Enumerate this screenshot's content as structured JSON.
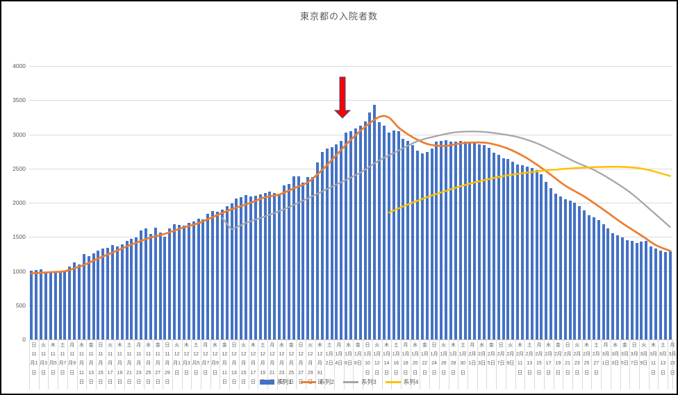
{
  "title": "東京都の入院者数",
  "colors": {
    "bar": "#4472C4",
    "line2": "#ED7D31",
    "line3": "#A5A5A5",
    "line4": "#FFC000",
    "gridline": "#D9D9D9",
    "axis_line": "#BFBFBF",
    "text": "#595959",
    "arrow_fill": "#FF0000",
    "arrow_border": "#2F5597"
  },
  "y_axis": {
    "min": 0,
    "max": 4000,
    "step": 500,
    "ticks": [
      "0",
      "500",
      "1000",
      "1500",
      "2000",
      "2500",
      "3000",
      "3500",
      "4000"
    ]
  },
  "legend": [
    {
      "label": "系列1",
      "type": "bar",
      "color": "#4472C4"
    },
    {
      "label": "系列2",
      "type": "line",
      "color": "#ED7D31"
    },
    {
      "label": "系列3",
      "type": "line",
      "color": "#A5A5A5"
    },
    {
      "label": "系列4",
      "type": "line",
      "color": "#FFC000"
    }
  ],
  "annotation": {
    "shape": "down-arrow",
    "fill_color": "#FF0000",
    "border_color": "#2F5597"
  },
  "chart_data": {
    "type": "bar",
    "combo": "bar+line",
    "ylim": [
      0,
      4000
    ],
    "grid": true,
    "legend_position": "bottom",
    "x_start": "11月1日",
    "x_end": "3月15日",
    "x_label_interval_days": 2,
    "x_labels": [
      [
        "日",
        11,
        1
      ],
      [
        "火",
        11,
        3
      ],
      [
        "木",
        11,
        5
      ],
      [
        "土",
        11,
        7
      ],
      [
        "月",
        11,
        9
      ],
      [
        "水",
        11,
        11
      ],
      [
        "金",
        11,
        13
      ],
      [
        "日",
        11,
        15
      ],
      [
        "火",
        11,
        17
      ],
      [
        "木",
        11,
        19
      ],
      [
        "土",
        11,
        21
      ],
      [
        "月",
        11,
        23
      ],
      [
        "水",
        11,
        25
      ],
      [
        "金",
        11,
        27
      ],
      [
        "日",
        11,
        29
      ],
      [
        "火",
        12,
        1
      ],
      [
        "木",
        12,
        3
      ],
      [
        "土",
        12,
        5
      ],
      [
        "月",
        12,
        7
      ],
      [
        "水",
        12,
        9
      ],
      [
        "金",
        12,
        11
      ],
      [
        "日",
        12,
        13
      ],
      [
        "火",
        12,
        15
      ],
      [
        "木",
        12,
        17
      ],
      [
        "土",
        12,
        19
      ],
      [
        "月",
        12,
        21
      ],
      [
        "水",
        12,
        23
      ],
      [
        "金",
        12,
        25
      ],
      [
        "日",
        12,
        27
      ],
      [
        "火",
        12,
        29
      ],
      [
        "木",
        12,
        31
      ],
      [
        "土",
        1,
        2
      ],
      [
        "月",
        1,
        4
      ],
      [
        "水",
        1,
        6
      ],
      [
        "金",
        1,
        8
      ],
      [
        "日",
        1,
        10
      ],
      [
        "火",
        1,
        12
      ],
      [
        "木",
        1,
        14
      ],
      [
        "土",
        1,
        16
      ],
      [
        "月",
        1,
        18
      ],
      [
        "水",
        1,
        20
      ],
      [
        "金",
        1,
        22
      ],
      [
        "日",
        1,
        24
      ],
      [
        "火",
        1,
        26
      ],
      [
        "木",
        1,
        28
      ],
      [
        "土",
        1,
        30
      ],
      [
        "月",
        2,
        1
      ],
      [
        "水",
        2,
        3
      ],
      [
        "金",
        2,
        5
      ],
      [
        "日",
        2,
        7
      ],
      [
        "火",
        2,
        9
      ],
      [
        "木",
        2,
        11
      ],
      [
        "土",
        2,
        13
      ],
      [
        "月",
        2,
        15
      ],
      [
        "水",
        2,
        17
      ],
      [
        "金",
        2,
        19
      ],
      [
        "日",
        2,
        21
      ],
      [
        "火",
        2,
        23
      ],
      [
        "木",
        2,
        25
      ],
      [
        "土",
        2,
        27
      ],
      [
        "月",
        3,
        1
      ],
      [
        "水",
        3,
        3
      ],
      [
        "金",
        3,
        5
      ],
      [
        "日",
        3,
        7
      ],
      [
        "火",
        3,
        9
      ],
      [
        "木",
        3,
        11
      ],
      [
        "土",
        3,
        13
      ],
      [
        "月",
        3,
        15
      ]
    ],
    "series": [
      {
        "name": "系列1",
        "type": "bar",
        "color": "#4472C4",
        "values": [
          1010,
          1020,
          1025,
          985,
          975,
          980,
          990,
          1000,
          1070,
          1125,
          1095,
          1245,
          1215,
          1260,
          1295,
          1330,
          1345,
          1380,
          1365,
          1395,
          1440,
          1470,
          1490,
          1590,
          1620,
          1545,
          1630,
          1560,
          1500,
          1620,
          1690,
          1680,
          1665,
          1710,
          1725,
          1770,
          1755,
          1840,
          1880,
          1870,
          1900,
          1950,
          1990,
          2060,
          2080,
          2110,
          2090,
          2105,
          2120,
          2140,
          2165,
          2140,
          2135,
          2255,
          2270,
          2390,
          2385,
          2290,
          2380,
          2375,
          2585,
          2745,
          2790,
          2810,
          2855,
          2900,
          3025,
          3050,
          3090,
          3130,
          3190,
          3320,
          3427,
          3180,
          3130,
          3030,
          3060,
          3050,
          2930,
          2900,
          2840,
          2760,
          2725,
          2740,
          2790,
          2890,
          2900,
          2910,
          2890,
          2890,
          2900,
          2890,
          2885,
          2875,
          2855,
          2840,
          2800,
          2730,
          2700,
          2650,
          2640,
          2600,
          2560,
          2545,
          2530,
          2510,
          2475,
          2420,
          2310,
          2215,
          2135,
          2095,
          2055,
          2035,
          2000,
          1945,
          1890,
          1815,
          1790,
          1750,
          1690,
          1625,
          1550,
          1525,
          1490,
          1455,
          1440,
          1415,
          1430,
          1445,
          1365,
          1330,
          1295,
          1280,
          1290
        ]
      },
      {
        "name": "系列2",
        "type": "line",
        "color": "#ED7D31",
        "width": 2.75,
        "anchors": [
          [
            0,
            965
          ],
          [
            4,
            985
          ],
          [
            7,
            1000
          ],
          [
            11,
            1090
          ],
          [
            14,
            1185
          ],
          [
            18,
            1300
          ],
          [
            21,
            1390
          ],
          [
            25,
            1490
          ],
          [
            28,
            1545
          ],
          [
            32,
            1640
          ],
          [
            35,
            1700
          ],
          [
            39,
            1820
          ],
          [
            42,
            1905
          ],
          [
            46,
            2000
          ],
          [
            49,
            2080
          ],
          [
            52,
            2120
          ],
          [
            55,
            2210
          ],
          [
            58,
            2300
          ],
          [
            61,
            2480
          ],
          [
            64,
            2700
          ],
          [
            67,
            2920
          ],
          [
            70,
            3110
          ],
          [
            73,
            3255
          ],
          [
            75,
            3245
          ],
          [
            77,
            3100
          ],
          [
            79,
            3000
          ],
          [
            81,
            2920
          ],
          [
            83,
            2860
          ],
          [
            85,
            2835
          ],
          [
            87,
            2830
          ],
          [
            89,
            2855
          ],
          [
            91,
            2875
          ],
          [
            93,
            2880
          ],
          [
            96,
            2870
          ],
          [
            100,
            2790
          ],
          [
            104,
            2650
          ],
          [
            108,
            2460
          ],
          [
            112,
            2250
          ],
          [
            116,
            2090
          ],
          [
            120,
            1900
          ],
          [
            124,
            1700
          ],
          [
            128,
            1520
          ],
          [
            131,
            1380
          ],
          [
            134,
            1295
          ]
        ]
      },
      {
        "name": "系列3",
        "type": "line",
        "color": "#A5A5A5",
        "width": 2.25,
        "anchors": [
          [
            40,
            1780
          ],
          [
            41,
            1690
          ],
          [
            42,
            1615
          ],
          [
            43,
            1640
          ],
          [
            45,
            1705
          ],
          [
            49,
            1800
          ],
          [
            53,
            1905
          ],
          [
            57,
            2030
          ],
          [
            61,
            2165
          ],
          [
            65,
            2300
          ],
          [
            69,
            2440
          ],
          [
            73,
            2620
          ],
          [
            77,
            2760
          ],
          [
            81,
            2900
          ],
          [
            85,
            2975
          ],
          [
            89,
            3030
          ],
          [
            94,
            3040
          ],
          [
            98,
            3010
          ],
          [
            102,
            2960
          ],
          [
            106,
            2870
          ],
          [
            110,
            2740
          ],
          [
            114,
            2600
          ],
          [
            118,
            2480
          ],
          [
            122,
            2320
          ],
          [
            126,
            2130
          ],
          [
            130,
            1890
          ],
          [
            134,
            1645
          ]
        ]
      },
      {
        "name": "系列4",
        "type": "line",
        "color": "#FFC000",
        "width": 2.5,
        "anchors": [
          [
            75,
            1855
          ],
          [
            79,
            1975
          ],
          [
            83,
            2080
          ],
          [
            87,
            2175
          ],
          [
            91,
            2260
          ],
          [
            95,
            2330
          ],
          [
            99,
            2390
          ],
          [
            103,
            2430
          ],
          [
            107,
            2465
          ],
          [
            111,
            2490
          ],
          [
            115,
            2510
          ],
          [
            119,
            2522
          ],
          [
            123,
            2525
          ],
          [
            127,
            2510
          ],
          [
            130,
            2470
          ],
          [
            134,
            2390
          ]
        ]
      }
    ]
  }
}
